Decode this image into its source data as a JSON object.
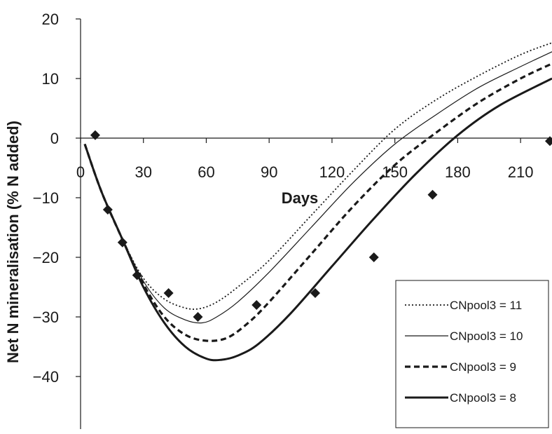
{
  "chart_data": {
    "type": "line",
    "title": "",
    "xlabel": "Days",
    "ylabel": "Net N mineralisation (% N added)",
    "xlim": [
      0,
      225
    ],
    "ylim": [
      -50,
      20
    ],
    "x_ticks": [
      0,
      30,
      60,
      90,
      120,
      150,
      180,
      210
    ],
    "x_tick_labels": [
      "0",
      "30",
      "60",
      "90",
      "120",
      "150",
      "180",
      "210"
    ],
    "y_ticks": [
      20,
      10,
      0,
      -10,
      -20,
      -30,
      -40
    ],
    "y_tick_labels": [
      "20",
      "10",
      "0",
      "−10",
      "−20",
      "−30",
      "−40"
    ],
    "grid": false,
    "legend_position": "bottom-right",
    "series": [
      {
        "name": "CNpool3 = 11",
        "style": "dotted",
        "color": "#1a1a1a",
        "x": [
          2,
          10,
          20,
          30,
          40,
          50,
          57,
          65,
          75,
          90,
          110,
          130,
          150,
          170,
          190,
          210,
          225
        ],
        "y": [
          -1,
          -9,
          -17,
          -23.5,
          -27,
          -28.5,
          -28.6,
          -27.5,
          -25,
          -20.5,
          -13,
          -5.5,
          1.5,
          6.5,
          10.5,
          14,
          16
        ]
      },
      {
        "name": "CNpool3 = 10",
        "style": "solid-thin",
        "color": "#1a1a1a",
        "x": [
          2,
          10,
          20,
          30,
          40,
          50,
          58,
          65,
          75,
          90,
          110,
          130,
          150,
          170,
          190,
          210,
          225
        ],
        "y": [
          -1,
          -9,
          -17,
          -24,
          -28.5,
          -30.5,
          -31,
          -30,
          -27.5,
          -22.5,
          -15,
          -7.5,
          -1,
          4,
          8.5,
          12,
          14.5
        ]
      },
      {
        "name": "CNpool3 = 9",
        "style": "dashed",
        "color": "#1a1a1a",
        "x": [
          2,
          10,
          20,
          30,
          40,
          50,
          60,
          70,
          80,
          90,
          110,
          130,
          150,
          170,
          190,
          210,
          225
        ],
        "y": [
          -1,
          -9,
          -17,
          -24.5,
          -30,
          -33,
          -34,
          -33.5,
          -31,
          -27.5,
          -19.5,
          -11.5,
          -4.5,
          1,
          6,
          10,
          12.5
        ]
      },
      {
        "name": "CNpool3 = 8",
        "style": "solid-thick",
        "color": "#1a1a1a",
        "x": [
          2,
          10,
          20,
          30,
          40,
          50,
          60,
          67,
          75,
          85,
          100,
          120,
          140,
          160,
          180,
          200,
          225
        ],
        "y": [
          -1,
          -9,
          -17,
          -25,
          -31,
          -35,
          -37,
          -37.2,
          -36.5,
          -34.5,
          -29.5,
          -21.5,
          -13.5,
          -6,
          0.5,
          5.5,
          10
        ]
      }
    ],
    "observed": {
      "marker": "diamond",
      "x": [
        7,
        13,
        20,
        27,
        42,
        56,
        84,
        112,
        140,
        168,
        224
      ],
      "y": [
        0.5,
        -12,
        -17.5,
        -23,
        -26,
        -30,
        -28,
        -26,
        -20,
        -9.5,
        -0.5
      ]
    }
  }
}
